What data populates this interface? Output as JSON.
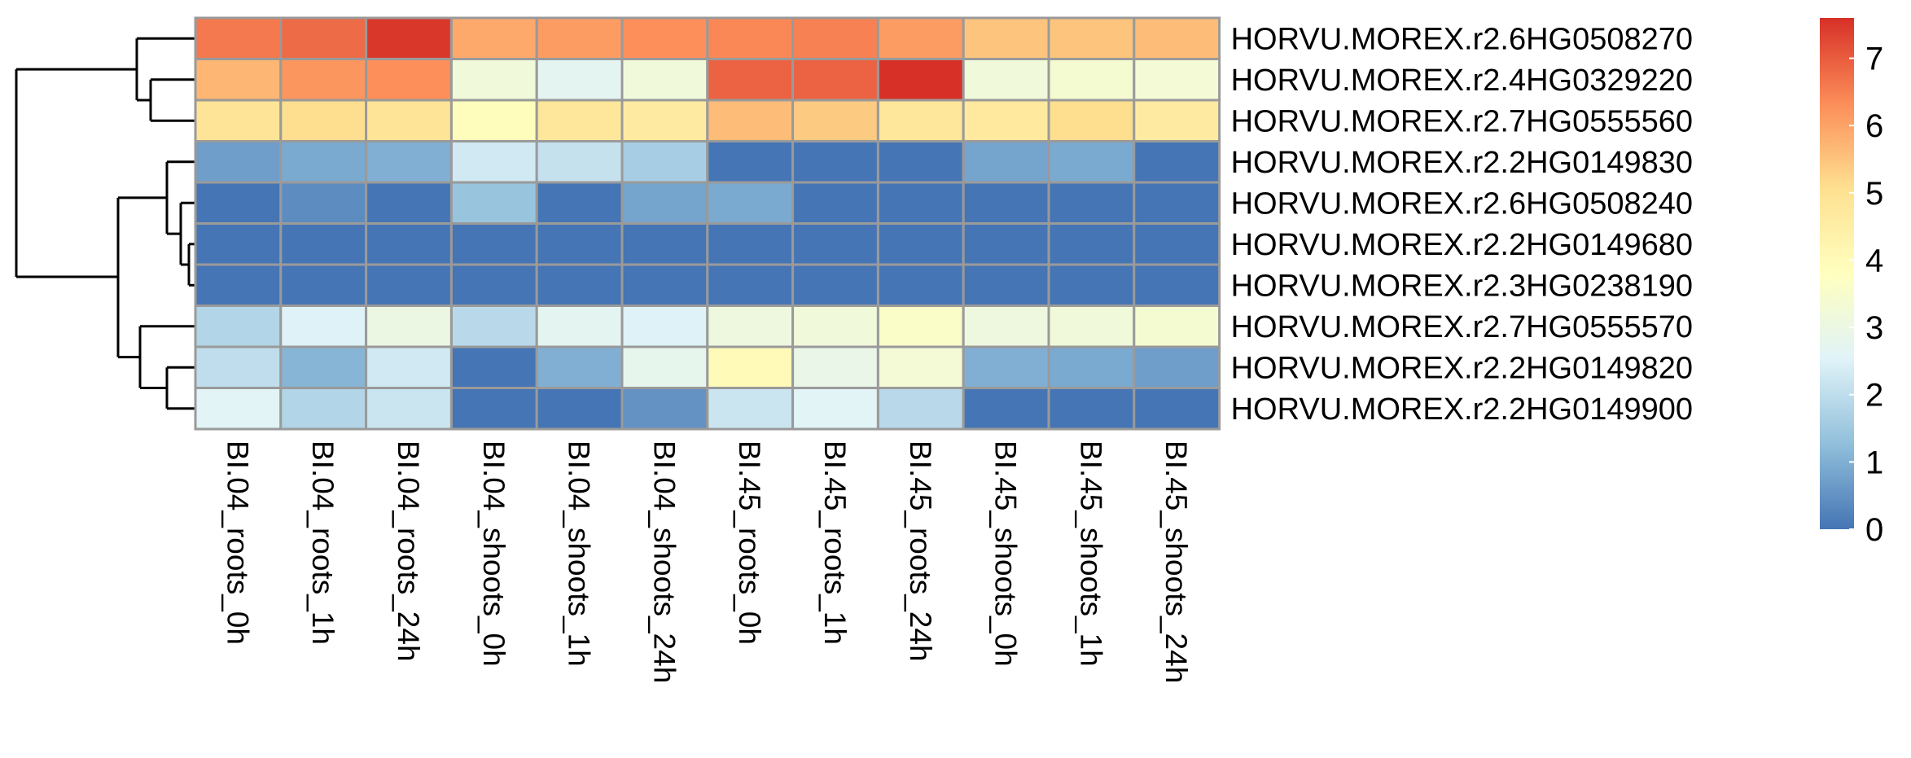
{
  "chart_data": {
    "type": "heatmap",
    "title": "",
    "xlabel": "",
    "ylabel": "",
    "columns": [
      "BI.04_roots_0h",
      "BI.04_roots_1h",
      "BI.04_roots_24h",
      "BI.04_shoots_0h",
      "BI.04_shoots_1h",
      "BI.04_shoots_24h",
      "BI.45_roots_0h",
      "BI.45_roots_1h",
      "BI.45_roots_24h",
      "BI.45_shoots_0h",
      "BI.45_shoots_1h",
      "BI.45_shoots_24h"
    ],
    "rows": [
      "HORVU.MOREX.r2.6HG0508270",
      "HORVU.MOREX.r2.4HG0329220",
      "HORVU.MOREX.r2.7HG0555560",
      "HORVU.MOREX.r2.2HG0149830",
      "HORVU.MOREX.r2.6HG0508240",
      "HORVU.MOREX.r2.2HG0149680",
      "HORVU.MOREX.r2.3HG0238190",
      "HORVU.MOREX.r2.7HG0555570",
      "HORVU.MOREX.r2.2HG0149820",
      "HORVU.MOREX.r2.2HG0149900"
    ],
    "values": [
      [
        6.6,
        6.8,
        7.5,
        5.9,
        6.1,
        6.3,
        6.4,
        6.5,
        6.1,
        5.5,
        5.5,
        5.6
      ],
      [
        5.7,
        6.2,
        6.3,
        3.2,
        2.7,
        3.2,
        6.9,
        6.9,
        7.6,
        3.2,
        3.4,
        3.3
      ],
      [
        4.9,
        5.1,
        4.9,
        3.9,
        4.8,
        4.6,
        5.6,
        5.4,
        4.8,
        4.7,
        5.1,
        4.6
      ],
      [
        0.7,
        0.9,
        1.0,
        2.3,
        2.1,
        1.6,
        0.0,
        0.0,
        0.0,
        0.8,
        0.9,
        0.0
      ],
      [
        0.0,
        0.4,
        0.0,
        1.4,
        0.0,
        0.8,
        0.9,
        0.0,
        0.0,
        0.0,
        0.0,
        0.0
      ],
      [
        0.0,
        0.0,
        0.0,
        0.0,
        0.0,
        0.0,
        0.0,
        0.0,
        0.0,
        0.0,
        0.0,
        0.0
      ],
      [
        0.0,
        0.0,
        0.0,
        0.0,
        0.0,
        0.0,
        0.0,
        0.0,
        0.0,
        0.0,
        0.0,
        0.0
      ],
      [
        1.8,
        2.5,
        3.0,
        1.9,
        2.7,
        2.5,
        3.1,
        3.2,
        3.6,
        3.1,
        3.2,
        3.4
      ],
      [
        2.0,
        1.1,
        2.3,
        0.0,
        1.0,
        2.8,
        4.0,
        2.9,
        3.3,
        1.0,
        0.9,
        0.7
      ],
      [
        2.6,
        1.8,
        2.2,
        0.0,
        0.0,
        0.5,
        2.2,
        2.6,
        1.9,
        0.0,
        0.0,
        0.0
      ]
    ],
    "color_scale": {
      "min": 0,
      "max": 7.6,
      "ticks": [
        0,
        1,
        2,
        3,
        4,
        5,
        6,
        7
      ],
      "palette": [
        "#4575b4",
        "#91bfdb",
        "#e0f3f8",
        "#ffffbf",
        "#fee090",
        "#fc8d59",
        "#d73027"
      ]
    },
    "cell_border_color": "#9a9a9a",
    "row_dendrogram": true,
    "legend": "right"
  }
}
